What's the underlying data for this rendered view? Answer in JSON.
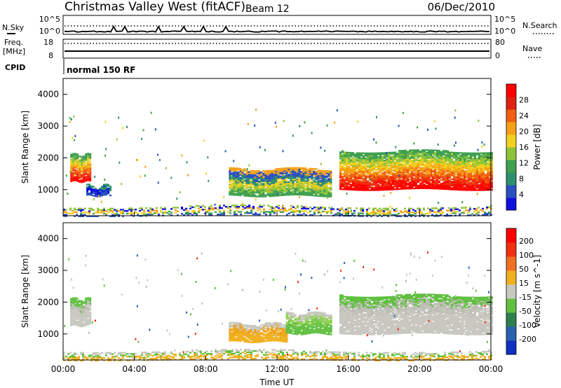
{
  "header": {
    "title": "Christmas Valley West (fitACF)",
    "beam": "Beam 12",
    "date": "06/Dec/2010"
  },
  "status_panels": {
    "nsky_label": "N.Sky",
    "nsearch_label": "N.Search",
    "noise_tick_top": "10^5",
    "noise_tick_bottom": "10^0",
    "freq_label": "Freq.",
    "freq_unit": "[MHz]",
    "freq_ticks": [
      "18",
      "8"
    ],
    "nave_label": "Nave",
    "nave_ticks": [
      "80",
      "0"
    ],
    "cpid_label": "CPID",
    "cpid_value": "normal 150 RF"
  },
  "chart_data": [
    {
      "type": "heatmap",
      "name": "power-panel",
      "ylabel": "Slant Range [km]",
      "yticks": [
        1000,
        2000,
        3000,
        4000
      ],
      "ylim": [
        180,
        4500
      ],
      "xlim": [
        0,
        24
      ],
      "colorbar": {
        "label": "Power [dB]",
        "ticks": [
          "4",
          "8",
          "12",
          "16",
          "20",
          "24",
          "28"
        ],
        "colors": [
          "#1010e0",
          "#2a4fc0",
          "#2e8f6e",
          "#3fa050",
          "#8fc43a",
          "#f0d020",
          "#f5a018",
          "#f06010",
          "#e02010",
          "#ff0000"
        ]
      },
      "echo_regions": [
        {
          "t0": 0.4,
          "t1": 1.5,
          "r0": 1250,
          "r1": 2100,
          "level": "strong"
        },
        {
          "t0": 1.3,
          "t1": 2.7,
          "r0": 800,
          "r1": 1100,
          "level": "weak"
        },
        {
          "t0": 9.3,
          "t1": 15.0,
          "r0": 800,
          "r1": 1650,
          "level": "medium"
        },
        {
          "t0": 15.5,
          "t1": 24.0,
          "r0": 1000,
          "r1": 2200,
          "level": "strong"
        },
        {
          "t0": 0.0,
          "t1": 24.0,
          "r0": 180,
          "r1": 450,
          "level": "ground"
        }
      ]
    },
    {
      "type": "heatmap",
      "name": "velocity-panel",
      "ylabel": "Slant Range [km]",
      "yticks": [
        1000,
        2000,
        3000,
        4000
      ],
      "ylim": [
        180,
        4500
      ],
      "xlim": [
        0,
        24
      ],
      "xticks": [
        "00:00",
        "04:00",
        "08:00",
        "12:00",
        "16:00",
        "20:00",
        "00:00"
      ],
      "xlabel": "Time UT",
      "colorbar": {
        "label": "Velocity [m s^-1]",
        "ticks": [
          "200",
          "100",
          "50",
          "15",
          "-15",
          "-50",
          "-100",
          "-200"
        ],
        "colors": [
          "#1030c0",
          "#2a60b0",
          "#2e7f50",
          "#60c040",
          "#c8c8c0",
          "#f0b020",
          "#f07020",
          "#f03010",
          "#ff0000"
        ]
      },
      "echo_regions": [
        {
          "t0": 0.4,
          "t1": 1.5,
          "r0": 1250,
          "r1": 2100,
          "level": "gray"
        },
        {
          "t0": 9.3,
          "t1": 12.5,
          "r0": 750,
          "r1": 1300,
          "level": "orange"
        },
        {
          "t0": 12.5,
          "t1": 15.0,
          "r0": 1000,
          "r1": 1650,
          "level": "green"
        },
        {
          "t0": 15.5,
          "t1": 24.0,
          "r0": 1000,
          "r1": 2200,
          "level": "gray"
        },
        {
          "t0": 0.0,
          "t1": 24.0,
          "r0": 180,
          "r1": 450,
          "level": "orange-ground"
        }
      ]
    }
  ]
}
